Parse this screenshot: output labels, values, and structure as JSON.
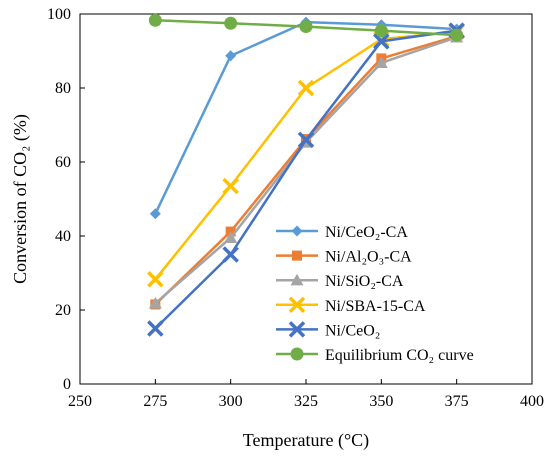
{
  "chart_data": {
    "type": "line",
    "title": "",
    "xlabel": "Temperature (°C)",
    "ylabel": "Conversion of CO₂ (%)",
    "xlim": [
      250,
      400
    ],
    "ylim": [
      0,
      100
    ],
    "xticks": [
      250,
      275,
      300,
      325,
      350,
      375,
      400
    ],
    "yticks": [
      0,
      20,
      40,
      60,
      80,
      100
    ],
    "grid": false,
    "legend_position": "bottom-right",
    "series": [
      {
        "name": "Ni/CeO₂-CA",
        "color": "#5B9BD5",
        "marker": "diamond",
        "x": [
          275,
          300,
          325,
          350,
          375
        ],
        "y": [
          46,
          88.7,
          97.8,
          97.1,
          95.9
        ]
      },
      {
        "name": "Ni/Al₂O₃-CA",
        "color": "#ED7D31",
        "marker": "square",
        "x": [
          275,
          300,
          325,
          350,
          375
        ],
        "y": [
          21.5,
          41.2,
          66.2,
          88,
          94
        ]
      },
      {
        "name": "Ni/SiO₂-CA",
        "color": "#A5A5A5",
        "marker": "triangle",
        "x": [
          275,
          300,
          325,
          350,
          375
        ],
        "y": [
          21.8,
          39.5,
          65.3,
          86.8,
          93.7
        ]
      },
      {
        "name": "Ni/SBA-15-CA",
        "color": "#FFC000",
        "marker": "x",
        "x": [
          275,
          300,
          325,
          350,
          375
        ],
        "y": [
          28.3,
          53.5,
          80,
          93.2,
          95.2
        ]
      },
      {
        "name": "Ni/CeO₂",
        "color": "#4472C4",
        "marker": "x",
        "x": [
          275,
          300,
          325,
          350,
          375
        ],
        "y": [
          15,
          35,
          66,
          92.6,
          95.5
        ]
      },
      {
        "name": "Equilibrium CO₂ curve",
        "color": "#70AD47",
        "marker": "circle",
        "x": [
          275,
          300,
          325,
          350,
          375
        ],
        "y": [
          98.3,
          97.5,
          96.6,
          95.5,
          94.3
        ]
      }
    ]
  }
}
